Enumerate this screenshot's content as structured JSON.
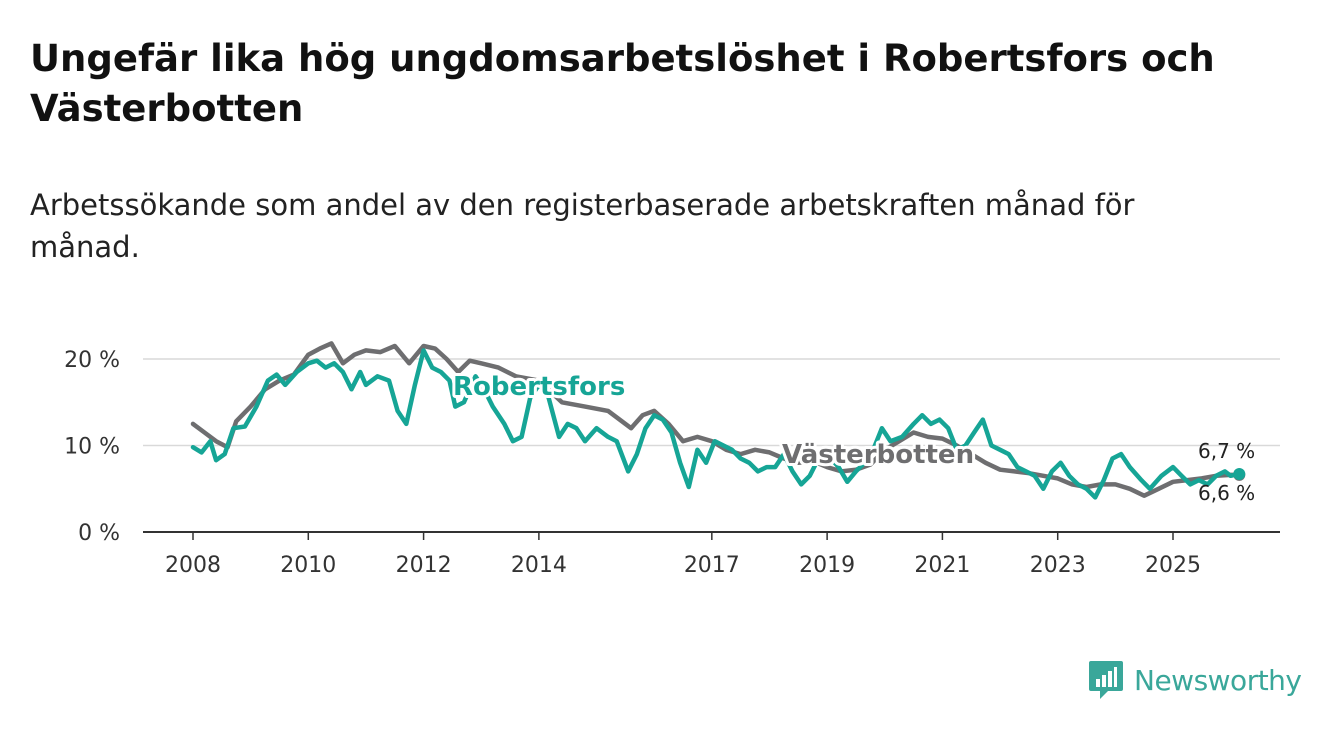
{
  "title": "Ungefär lika hög ungdomsarbetslöshet i Robertsfors och Västerbotten",
  "subtitle": "Arbetssökande som andel av den registerbaserade arbetskraften månad för månad.",
  "brand": {
    "name": "Newsworthy",
    "icon": "newsworthy-chart-bubble-icon",
    "color": "#3aa79a"
  },
  "chart_data": {
    "type": "line",
    "title": "Ungefär lika hög ungdomsarbetslöshet i Robertsfors och Västerbotten",
    "subtitle": "Arbetssökande som andel av den registerbaserade arbetskraften månad för månad.",
    "xlabel": "",
    "ylabel": "",
    "unit": "%",
    "xlim": [
      2008,
      2026.5
    ],
    "ylim": [
      0,
      20
    ],
    "grid": true,
    "legend": "inline",
    "x_ticks": [
      2008,
      2010,
      2012,
      2014,
      2017,
      2019,
      2021,
      2023,
      2025
    ],
    "x_tick_labels": [
      "2008",
      "2010",
      "2012",
      "2014",
      "2017",
      "2019",
      "2021",
      "2023",
      "2025"
    ],
    "y_ticks": [
      0,
      10,
      20
    ],
    "y_tick_labels": [
      "0 %",
      "10 %",
      "20 %"
    ],
    "series": [
      {
        "name": "Västerbotten",
        "label": "Västerbotten",
        "color": "#6e6e70",
        "end_label": "6,6 %",
        "points": [
          [
            2008.0,
            12.5
          ],
          [
            2008.2,
            11.5
          ],
          [
            2008.4,
            10.5
          ],
          [
            2008.6,
            9.8
          ],
          [
            2008.75,
            12.8
          ],
          [
            2009.0,
            14.5
          ],
          [
            2009.25,
            16.5
          ],
          [
            2009.5,
            17.5
          ],
          [
            2009.75,
            18.2
          ],
          [
            2010.0,
            20.5
          ],
          [
            2010.2,
            21.2
          ],
          [
            2010.4,
            21.8
          ],
          [
            2010.6,
            19.5
          ],
          [
            2010.8,
            20.5
          ],
          [
            2011.0,
            21.0
          ],
          [
            2011.25,
            20.8
          ],
          [
            2011.5,
            21.5
          ],
          [
            2011.75,
            19.5
          ],
          [
            2012.0,
            21.5
          ],
          [
            2012.2,
            21.2
          ],
          [
            2012.4,
            20.0
          ],
          [
            2012.6,
            18.5
          ],
          [
            2012.8,
            19.8
          ],
          [
            2013.0,
            19.5
          ],
          [
            2013.3,
            19.0
          ],
          [
            2013.6,
            18.0
          ],
          [
            2014.0,
            17.5
          ],
          [
            2014.4,
            15.0
          ],
          [
            2014.8,
            14.5
          ],
          [
            2015.2,
            14.0
          ],
          [
            2015.6,
            12.0
          ],
          [
            2015.8,
            13.5
          ],
          [
            2016.0,
            14.0
          ],
          [
            2016.25,
            12.5
          ],
          [
            2016.5,
            10.5
          ],
          [
            2016.75,
            11.0
          ],
          [
            2017.0,
            10.5
          ],
          [
            2017.25,
            9.5
          ],
          [
            2017.5,
            9.0
          ],
          [
            2017.75,
            9.5
          ],
          [
            2018.0,
            9.2
          ],
          [
            2018.25,
            8.5
          ],
          [
            2018.5,
            8.0
          ],
          [
            2018.75,
            8.2
          ],
          [
            2019.0,
            7.5
          ],
          [
            2019.25,
            7.0
          ],
          [
            2019.5,
            7.2
          ],
          [
            2019.75,
            7.8
          ],
          [
            2020.0,
            9.5
          ],
          [
            2020.25,
            10.5
          ],
          [
            2020.5,
            11.5
          ],
          [
            2020.75,
            11.0
          ],
          [
            2021.0,
            10.8
          ],
          [
            2021.25,
            10.0
          ],
          [
            2021.5,
            9.0
          ],
          [
            2021.75,
            8.0
          ],
          [
            2022.0,
            7.2
          ],
          [
            2022.25,
            7.0
          ],
          [
            2022.5,
            6.8
          ],
          [
            2022.75,
            6.5
          ],
          [
            2023.0,
            6.2
          ],
          [
            2023.25,
            5.5
          ],
          [
            2023.5,
            5.2
          ],
          [
            2023.75,
            5.5
          ],
          [
            2024.0,
            5.5
          ],
          [
            2024.25,
            5.0
          ],
          [
            2024.5,
            4.2
          ],
          [
            2024.75,
            5.0
          ],
          [
            2025.0,
            5.8
          ],
          [
            2025.25,
            6.0
          ],
          [
            2025.5,
            6.2
          ],
          [
            2025.75,
            6.5
          ],
          [
            2026.0,
            6.6
          ],
          [
            2026.15,
            6.6
          ]
        ]
      },
      {
        "name": "Robertsfors",
        "label": "Robertsfors",
        "color": "#16a596",
        "end_label": "6,7 %",
        "points": [
          [
            2008.0,
            9.8
          ],
          [
            2008.15,
            9.2
          ],
          [
            2008.3,
            10.5
          ],
          [
            2008.4,
            8.3
          ],
          [
            2008.55,
            9.0
          ],
          [
            2008.7,
            12.0
          ],
          [
            2008.9,
            12.2
          ],
          [
            2009.1,
            14.5
          ],
          [
            2009.3,
            17.5
          ],
          [
            2009.45,
            18.2
          ],
          [
            2009.6,
            17.0
          ],
          [
            2009.8,
            18.5
          ],
          [
            2010.0,
            19.5
          ],
          [
            2010.15,
            19.8
          ],
          [
            2010.3,
            19.0
          ],
          [
            2010.45,
            19.5
          ],
          [
            2010.6,
            18.5
          ],
          [
            2010.75,
            16.5
          ],
          [
            2010.9,
            18.5
          ],
          [
            2011.0,
            17.0
          ],
          [
            2011.2,
            18.0
          ],
          [
            2011.4,
            17.5
          ],
          [
            2011.55,
            14.0
          ],
          [
            2011.7,
            12.5
          ],
          [
            2011.85,
            17.0
          ],
          [
            2012.0,
            21.0
          ],
          [
            2012.15,
            19.0
          ],
          [
            2012.3,
            18.5
          ],
          [
            2012.45,
            17.5
          ],
          [
            2012.55,
            14.5
          ],
          [
            2012.7,
            15.0
          ],
          [
            2012.9,
            18.0
          ],
          [
            2013.05,
            16.5
          ],
          [
            2013.2,
            14.5
          ],
          [
            2013.4,
            12.5
          ],
          [
            2013.55,
            10.5
          ],
          [
            2013.7,
            11.0
          ],
          [
            2013.85,
            15.5
          ],
          [
            2014.0,
            17.0
          ],
          [
            2014.15,
            16.0
          ],
          [
            2014.35,
            11.0
          ],
          [
            2014.5,
            12.5
          ],
          [
            2014.65,
            12.0
          ],
          [
            2014.8,
            10.5
          ],
          [
            2015.0,
            12.0
          ],
          [
            2015.2,
            11.0
          ],
          [
            2015.35,
            10.5
          ],
          [
            2015.55,
            7.0
          ],
          [
            2015.7,
            9.0
          ],
          [
            2015.85,
            12.0
          ],
          [
            2016.0,
            13.5
          ],
          [
            2016.15,
            13.0
          ],
          [
            2016.3,
            11.5
          ],
          [
            2016.45,
            8.0
          ],
          [
            2016.6,
            5.2
          ],
          [
            2016.75,
            9.5
          ],
          [
            2016.9,
            8.0
          ],
          [
            2017.05,
            10.5
          ],
          [
            2017.2,
            10.0
          ],
          [
            2017.35,
            9.5
          ],
          [
            2017.5,
            8.5
          ],
          [
            2017.65,
            8.0
          ],
          [
            2017.8,
            7.0
          ],
          [
            2017.95,
            7.5
          ],
          [
            2018.1,
            7.5
          ],
          [
            2018.25,
            9.0
          ],
          [
            2018.4,
            7.0
          ],
          [
            2018.55,
            5.5
          ],
          [
            2018.7,
            6.5
          ],
          [
            2018.85,
            8.5
          ],
          [
            2019.0,
            9.0
          ],
          [
            2019.2,
            7.5
          ],
          [
            2019.35,
            5.8
          ],
          [
            2019.5,
            7.0
          ],
          [
            2019.65,
            8.0
          ],
          [
            2019.8,
            9.5
          ],
          [
            2019.95,
            12.0
          ],
          [
            2020.1,
            10.5
          ],
          [
            2020.3,
            11.0
          ],
          [
            2020.5,
            12.5
          ],
          [
            2020.65,
            13.5
          ],
          [
            2020.8,
            12.5
          ],
          [
            2020.95,
            13.0
          ],
          [
            2021.1,
            12.0
          ],
          [
            2021.25,
            9.5
          ],
          [
            2021.4,
            10.0
          ],
          [
            2021.55,
            11.5
          ],
          [
            2021.7,
            13.0
          ],
          [
            2021.85,
            10.0
          ],
          [
            2022.0,
            9.5
          ],
          [
            2022.15,
            9.0
          ],
          [
            2022.3,
            7.5
          ],
          [
            2022.45,
            7.0
          ],
          [
            2022.6,
            6.5
          ],
          [
            2022.75,
            5.0
          ],
          [
            2022.9,
            7.0
          ],
          [
            2023.05,
            8.0
          ],
          [
            2023.2,
            6.5
          ],
          [
            2023.35,
            5.5
          ],
          [
            2023.5,
            5.0
          ],
          [
            2023.65,
            4.0
          ],
          [
            2023.8,
            6.0
          ],
          [
            2023.95,
            8.5
          ],
          [
            2024.1,
            9.0
          ],
          [
            2024.25,
            7.5
          ],
          [
            2024.45,
            6.0
          ],
          [
            2024.6,
            5.0
          ],
          [
            2024.8,
            6.5
          ],
          [
            2025.0,
            7.5
          ],
          [
            2025.15,
            6.5
          ],
          [
            2025.3,
            5.5
          ],
          [
            2025.45,
            6.0
          ],
          [
            2025.6,
            5.5
          ],
          [
            2025.75,
            6.5
          ],
          [
            2025.9,
            7.0
          ],
          [
            2026.0,
            6.5
          ],
          [
            2026.15,
            6.7
          ]
        ]
      }
    ]
  }
}
